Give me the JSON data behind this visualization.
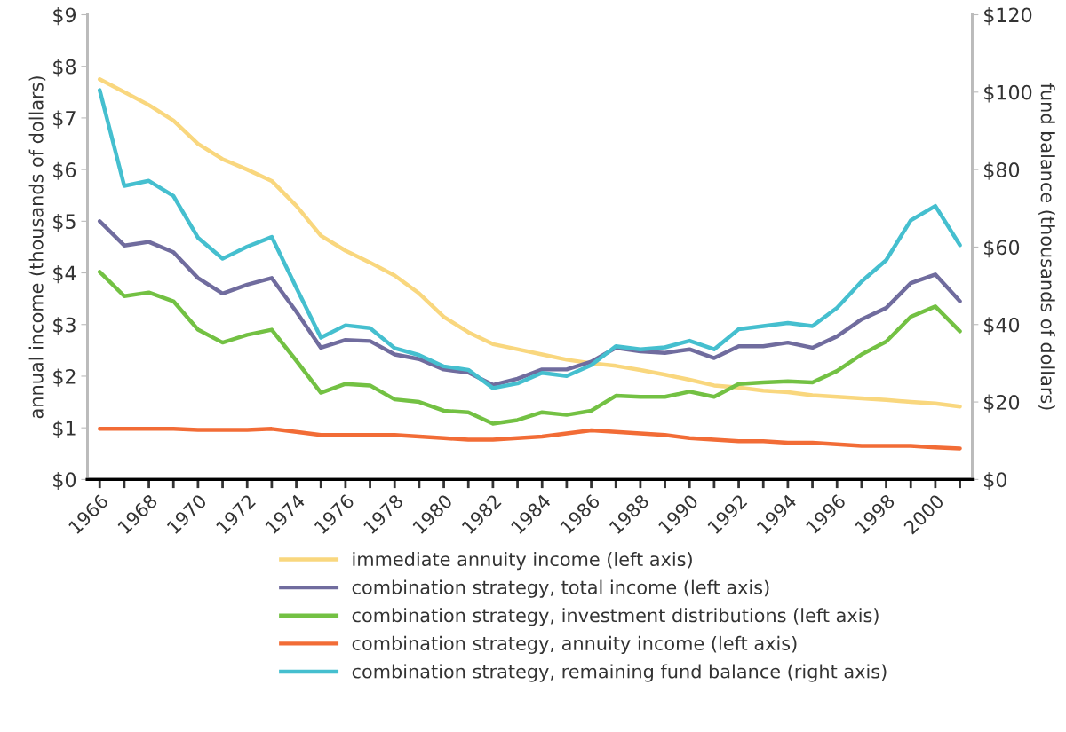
{
  "chart_data": {
    "type": "line",
    "categories": [
      "1966",
      null,
      "1968",
      null,
      "1970",
      null,
      "1972",
      null,
      "1974",
      null,
      "1976",
      null,
      "1978",
      null,
      "1980",
      null,
      "1982",
      null,
      "1984",
      null,
      "1986",
      null,
      "1988",
      null,
      "1990",
      null,
      "1992",
      null,
      "1994",
      null,
      "1996",
      null,
      "1998",
      null,
      "2000",
      null
    ],
    "ylabel": "annual income (thousands of dollars)",
    "y2label": "fund balance (thousands of dollars)",
    "ylim": [
      0,
      9
    ],
    "yticks": [
      {
        "value": 0,
        "label": "$0"
      },
      {
        "value": 1,
        "label": "$1"
      },
      {
        "value": 2,
        "label": "$2"
      },
      {
        "value": 3,
        "label": "$3"
      },
      {
        "value": 4,
        "label": "$4"
      },
      {
        "value": 5,
        "label": "$5"
      },
      {
        "value": 6,
        "label": "$6"
      },
      {
        "value": 7,
        "label": "$7"
      },
      {
        "value": 8,
        "label": "$8"
      },
      {
        "value": 9,
        "label": "$9"
      }
    ],
    "y2lim": [
      0,
      120
    ],
    "y2ticks": [
      {
        "value": 0,
        "label": "$0"
      },
      {
        "value": 20,
        "label": "$20"
      },
      {
        "value": 40,
        "label": "$40"
      },
      {
        "value": 60,
        "label": "$60"
      },
      {
        "value": 80,
        "label": "$80"
      },
      {
        "value": 100,
        "label": "$100"
      },
      {
        "value": 120,
        "label": "$120"
      }
    ],
    "grid": false,
    "legend": "bottom",
    "series": [
      {
        "name": "immediate annuity income (left axis)",
        "color": "#f9d77e",
        "values": [
          7.75,
          7.5,
          7.25,
          6.95,
          6.5,
          6.2,
          6.0,
          5.78,
          5.3,
          4.72,
          4.43,
          4.2,
          3.95,
          3.6,
          3.15,
          2.85,
          2.62,
          2.52,
          2.42,
          2.32,
          2.25,
          2.2,
          2.12,
          2.03,
          1.93,
          1.82,
          1.78,
          1.72,
          1.69,
          1.63,
          1.6,
          1.57,
          1.54,
          1.5,
          1.47,
          1.41
        ]
      },
      {
        "name": "combination strategy, total income (left axis)",
        "color": "#706c9e",
        "values": [
          5.0,
          4.53,
          4.6,
          4.4,
          3.9,
          3.6,
          3.77,
          3.9,
          3.25,
          2.55,
          2.7,
          2.68,
          2.42,
          2.33,
          2.13,
          2.07,
          1.83,
          1.95,
          2.13,
          2.13,
          2.28,
          2.55,
          2.48,
          2.45,
          2.52,
          2.35,
          2.58,
          2.58,
          2.65,
          2.55,
          2.77,
          3.1,
          3.32,
          3.8,
          3.97,
          3.45
        ]
      },
      {
        "name": "combination strategy, investment distributions (left axis)",
        "color": "#73c143",
        "values": [
          4.02,
          3.55,
          3.62,
          3.45,
          2.9,
          2.65,
          2.8,
          2.9,
          2.3,
          1.68,
          1.85,
          1.82,
          1.55,
          1.5,
          1.33,
          1.3,
          1.08,
          1.15,
          1.3,
          1.25,
          1.33,
          1.62,
          1.6,
          1.6,
          1.7,
          1.6,
          1.85,
          1.88,
          1.9,
          1.88,
          2.1,
          2.42,
          2.67,
          3.15,
          3.35,
          2.87
        ]
      },
      {
        "name": "combination strategy, annuity income (left axis)",
        "color": "#f26c36",
        "values": [
          0.98,
          0.98,
          0.98,
          0.98,
          0.96,
          0.96,
          0.96,
          0.98,
          0.92,
          0.86,
          0.86,
          0.86,
          0.86,
          0.83,
          0.8,
          0.77,
          0.77,
          0.8,
          0.83,
          0.89,
          0.95,
          0.92,
          0.89,
          0.86,
          0.8,
          0.77,
          0.74,
          0.74,
          0.71,
          0.71,
          0.68,
          0.65,
          0.65,
          0.65,
          0.62,
          0.6
        ]
      },
      {
        "name": "combination strategy, remaining fund balance (right axis)",
        "color": "#45bfcf",
        "axis": "y2",
        "values": [
          100.5,
          75.8,
          77.1,
          73.2,
          62.4,
          57.0,
          60.1,
          62.6,
          49.5,
          36.6,
          39.8,
          39.1,
          33.9,
          32.1,
          29.2,
          28.3,
          23.6,
          24.8,
          27.5,
          26.7,
          29.5,
          34.4,
          33.6,
          34.1,
          35.8,
          33.6,
          38.8,
          39.6,
          40.4,
          39.6,
          44.3,
          51.1,
          56.6,
          66.9,
          70.6,
          60.5
        ]
      }
    ]
  }
}
